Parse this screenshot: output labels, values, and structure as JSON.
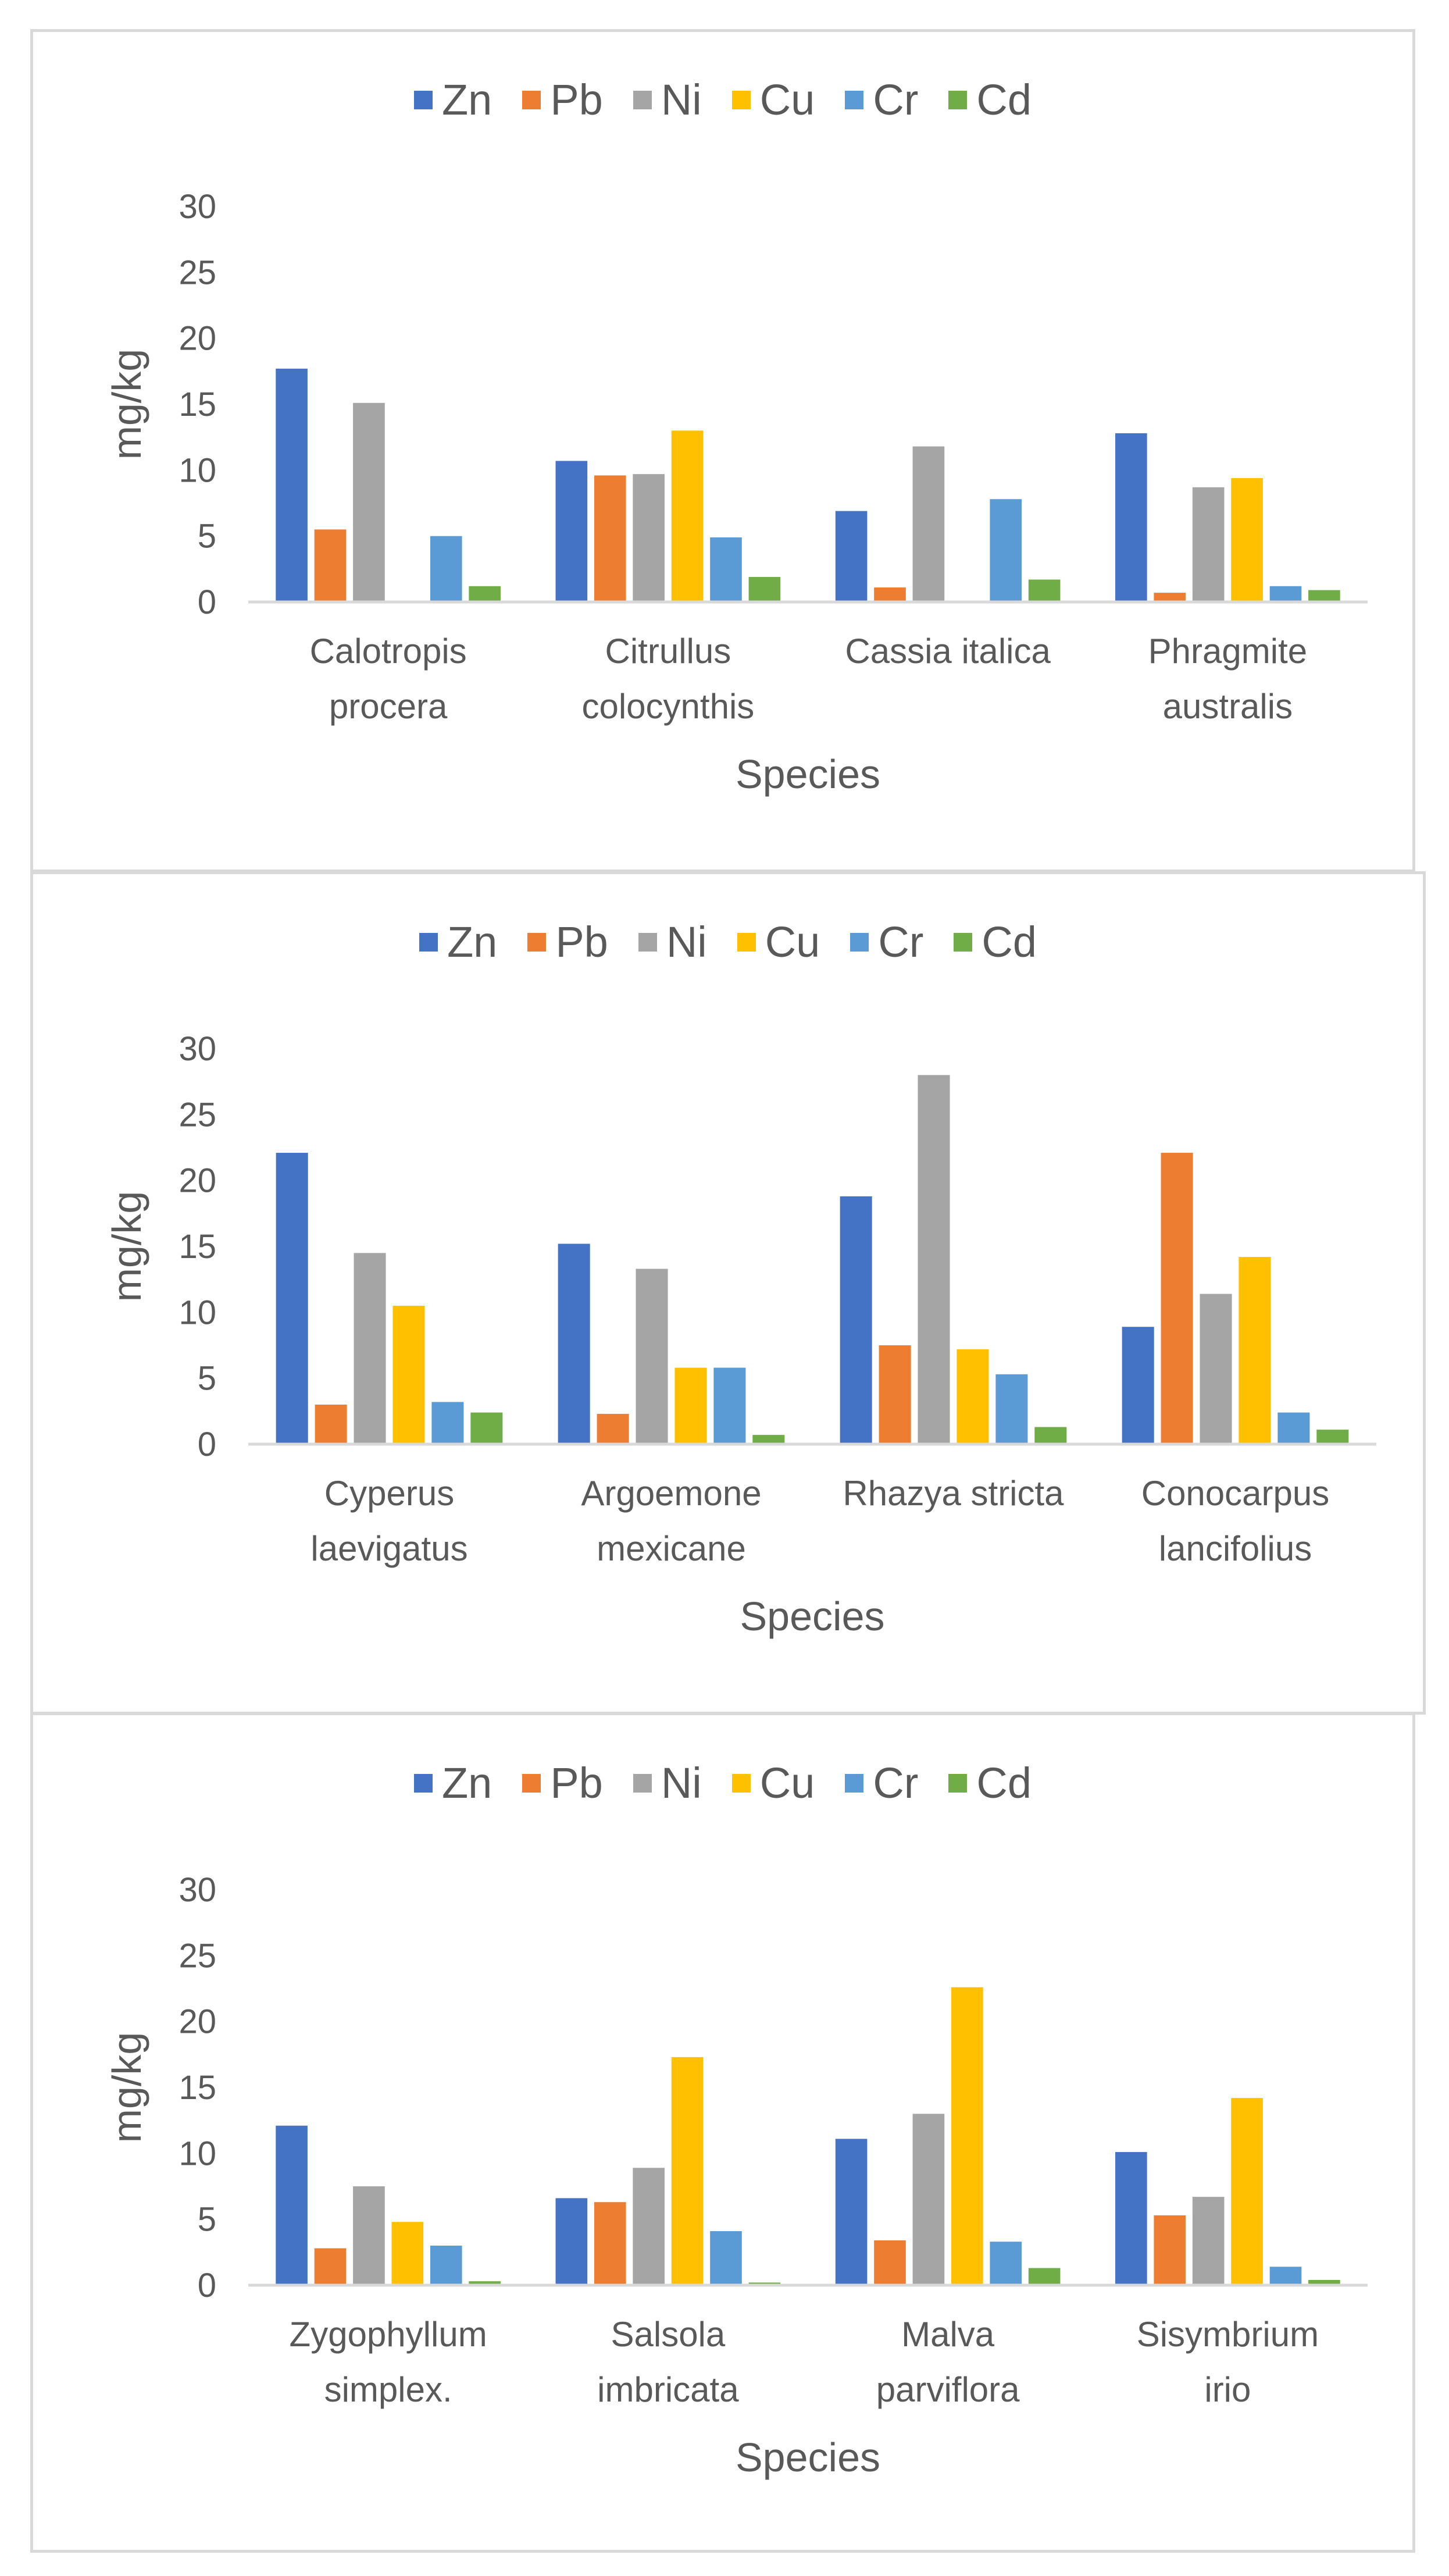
{
  "chart_data": [
    {
      "type": "bar",
      "xlabel": "Species",
      "ylabel": "mg/kg",
      "ylim": [
        0,
        30
      ],
      "yticks": [
        "0",
        "5",
        "10",
        "15",
        "20",
        "25",
        "30"
      ],
      "legend_position": "top",
      "categories": [
        [
          "Calotropis",
          "procera"
        ],
        [
          "Citrullus",
          "colocynthis"
        ],
        [
          "Cassia italica"
        ],
        [
          "Phragmite",
          "australis"
        ]
      ],
      "series": [
        {
          "name": "Zn",
          "color": "#4472C4",
          "values": [
            17.7,
            10.7,
            6.9,
            12.8
          ]
        },
        {
          "name": "Pb",
          "color": "#ED7D31",
          "values": [
            5.5,
            9.6,
            1.1,
            0.7
          ]
        },
        {
          "name": "Ni",
          "color": "#A5A5A5",
          "values": [
            15.1,
            9.7,
            11.8,
            8.7
          ]
        },
        {
          "name": "Cu",
          "color": "#FFC000",
          "values": [
            0,
            13.0,
            0,
            9.4
          ]
        },
        {
          "name": "Cr",
          "color": "#5B9BD5",
          "values": [
            5.0,
            4.9,
            7.8,
            1.2
          ]
        },
        {
          "name": "Cd",
          "color": "#70AD47",
          "values": [
            1.2,
            1.9,
            1.7,
            0.9
          ]
        }
      ]
    },
    {
      "type": "bar",
      "xlabel": "Species",
      "ylabel": "mg/kg",
      "ylim": [
        0,
        30
      ],
      "yticks": [
        "0",
        "5",
        "10",
        "15",
        "20",
        "25",
        "30"
      ],
      "legend_position": "top",
      "categories": [
        [
          "Cyperus",
          "laevigatus"
        ],
        [
          "Argoemone",
          "mexicane"
        ],
        [
          "Rhazya stricta"
        ],
        [
          "Conocarpus",
          "lancifolius"
        ]
      ],
      "series": [
        {
          "name": "Zn",
          "color": "#4472C4",
          "values": [
            22.1,
            15.2,
            18.8,
            8.9
          ]
        },
        {
          "name": "Pb",
          "color": "#ED7D31",
          "values": [
            3.0,
            2.3,
            7.5,
            22.1
          ]
        },
        {
          "name": "Ni",
          "color": "#A5A5A5",
          "values": [
            14.5,
            13.3,
            28.0,
            11.4
          ]
        },
        {
          "name": "Cu",
          "color": "#FFC000",
          "values": [
            10.5,
            5.8,
            7.2,
            14.2
          ]
        },
        {
          "name": "Cr",
          "color": "#5B9BD5",
          "values": [
            3.2,
            5.8,
            5.3,
            2.4
          ]
        },
        {
          "name": "Cd",
          "color": "#70AD47",
          "values": [
            2.4,
            0.7,
            1.3,
            1.1
          ]
        }
      ]
    },
    {
      "type": "bar",
      "xlabel": "Species",
      "ylabel": "mg/kg",
      "ylim": [
        0,
        30
      ],
      "yticks": [
        "0",
        "5",
        "10",
        "15",
        "20",
        "25",
        "30"
      ],
      "legend_position": "top",
      "categories": [
        [
          "Zygophyllum",
          "simplex."
        ],
        [
          "Salsola",
          "imbricata"
        ],
        [
          "Malva",
          "parviflora"
        ],
        [
          "Sisymbrium",
          "irio"
        ]
      ],
      "series": [
        {
          "name": "Zn",
          "color": "#4472C4",
          "values": [
            12.1,
            6.6,
            11.1,
            10.1
          ]
        },
        {
          "name": "Pb",
          "color": "#ED7D31",
          "values": [
            2.8,
            6.3,
            3.4,
            5.3
          ]
        },
        {
          "name": "Ni",
          "color": "#A5A5A5",
          "values": [
            7.5,
            8.9,
            13.0,
            6.7
          ]
        },
        {
          "name": "Cu",
          "color": "#FFC000",
          "values": [
            4.8,
            17.3,
            22.6,
            14.2
          ]
        },
        {
          "name": "Cr",
          "color": "#5B9BD5",
          "values": [
            3.0,
            4.1,
            3.3,
            1.4
          ]
        },
        {
          "name": "Cd",
          "color": "#70AD47",
          "values": [
            0.3,
            0.2,
            1.3,
            0.4
          ]
        }
      ]
    }
  ]
}
